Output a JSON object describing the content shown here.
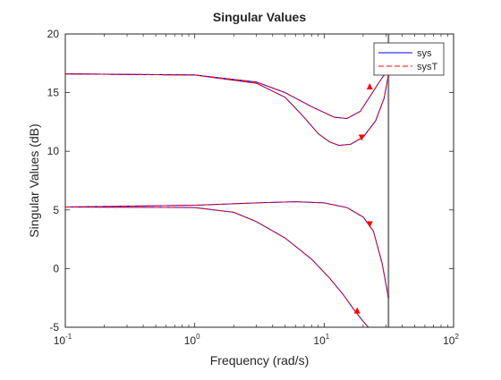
{
  "colors": {
    "sys": "#0000ff",
    "sysT": "#ff0000",
    "vertical_line": "#808080",
    "axes": "#262626"
  },
  "chart_data": {
    "type": "line",
    "title": "Singular Values",
    "xlabel": "Frequency (rad/s)",
    "ylabel": "Singular Values (dB)",
    "xscale": "log",
    "xlim": [
      0.1,
      100
    ],
    "ylim": [
      -5,
      20
    ],
    "grid": false,
    "legend_position": "top-right",
    "xticks": [
      {
        "base": "10",
        "exp": "-1",
        "value": 0.1
      },
      {
        "base": "10",
        "exp": "0",
        "value": 1
      },
      {
        "base": "10",
        "exp": "1",
        "value": 10
      },
      {
        "base": "10",
        "exp": "2",
        "value": 100
      }
    ],
    "yticks": [
      {
        "label": "-5",
        "value": -5
      },
      {
        "label": "0",
        "value": 0
      },
      {
        "label": "5",
        "value": 5
      },
      {
        "label": "10",
        "value": 10
      },
      {
        "label": "15",
        "value": 15
      },
      {
        "label": "20",
        "value": 20
      }
    ],
    "vertical_line_x": 31.4,
    "series": [
      {
        "name": "sys",
        "style": "solid",
        "branches": [
          [
            [
              0.1,
              16.6
            ],
            [
              1,
              16.5
            ],
            [
              3,
              15.9
            ],
            [
              5,
              15.0
            ],
            [
              8,
              13.8
            ],
            [
              12,
              12.9
            ],
            [
              15,
              12.8
            ],
            [
              19,
              13.4
            ],
            [
              23,
              14.8
            ],
            [
              27,
              16.0
            ],
            [
              31.4,
              17.0
            ]
          ],
          [
            [
              0.1,
              16.6
            ],
            [
              1,
              16.5
            ],
            [
              3,
              15.8
            ],
            [
              5,
              14.6
            ],
            [
              7,
              12.9
            ],
            [
              9,
              11.5
            ],
            [
              11,
              10.8
            ],
            [
              13,
              10.5
            ],
            [
              16,
              10.6
            ],
            [
              20,
              11.2
            ],
            [
              25,
              12.6
            ],
            [
              29,
              14.5
            ],
            [
              31.4,
              16.5
            ]
          ],
          [
            [
              0.1,
              5.25
            ],
            [
              1,
              5.4
            ],
            [
              3,
              5.6
            ],
            [
              6,
              5.7
            ],
            [
              10,
              5.6
            ],
            [
              15,
              5.2
            ],
            [
              20,
              4.4
            ],
            [
              24,
              3.2
            ],
            [
              28,
              0.5
            ],
            [
              31.4,
              -2.5
            ]
          ],
          [
            [
              0.1,
              5.25
            ],
            [
              1,
              5.2
            ],
            [
              2,
              4.8
            ],
            [
              3,
              4.0
            ],
            [
              5,
              2.6
            ],
            [
              8,
              0.8
            ],
            [
              11,
              -0.8
            ],
            [
              14,
              -2.2
            ],
            [
              17,
              -3.5
            ],
            [
              20,
              -4.5
            ],
            [
              22,
              -5
            ]
          ]
        ]
      },
      {
        "name": "sysT",
        "style": "dashed",
        "branches": [
          [
            [
              0.1,
              16.6
            ],
            [
              1,
              16.5
            ],
            [
              3,
              15.9
            ],
            [
              5,
              15.0
            ],
            [
              8,
              13.8
            ],
            [
              12,
              12.9
            ],
            [
              15,
              12.8
            ],
            [
              19,
              13.4
            ],
            [
              23,
              14.8
            ],
            [
              27,
              16.0
            ],
            [
              31.4,
              17.0
            ]
          ],
          [
            [
              0.1,
              16.6
            ],
            [
              1,
              16.5
            ],
            [
              3,
              15.8
            ],
            [
              5,
              14.6
            ],
            [
              7,
              12.9
            ],
            [
              9,
              11.5
            ],
            [
              11,
              10.8
            ],
            [
              13,
              10.5
            ],
            [
              16,
              10.6
            ],
            [
              20,
              11.2
            ],
            [
              25,
              12.6
            ],
            [
              29,
              14.5
            ],
            [
              31.4,
              16.5
            ]
          ],
          [
            [
              0.1,
              5.25
            ],
            [
              1,
              5.4
            ],
            [
              3,
              5.6
            ],
            [
              6,
              5.7
            ],
            [
              10,
              5.6
            ],
            [
              15,
              5.2
            ],
            [
              20,
              4.4
            ],
            [
              24,
              3.2
            ],
            [
              28,
              0.5
            ],
            [
              31.4,
              -2.5
            ]
          ],
          [
            [
              0.1,
              5.25
            ],
            [
              1,
              5.2
            ],
            [
              2,
              4.8
            ],
            [
              3,
              4.0
            ],
            [
              5,
              2.6
            ],
            [
              8,
              0.8
            ],
            [
              11,
              -0.8
            ],
            [
              14,
              -2.2
            ],
            [
              17,
              -3.5
            ],
            [
              20,
              -4.5
            ],
            [
              22,
              -5
            ]
          ]
        ]
      }
    ],
    "arrows": [
      {
        "x": 22.5,
        "y": 15.5,
        "dir": "up"
      },
      {
        "x": 19.5,
        "y": 11.2,
        "dir": "down"
      },
      {
        "x": 22.5,
        "y": 3.8,
        "dir": "down"
      },
      {
        "x": 18.0,
        "y": -3.6,
        "dir": "up"
      }
    ]
  }
}
